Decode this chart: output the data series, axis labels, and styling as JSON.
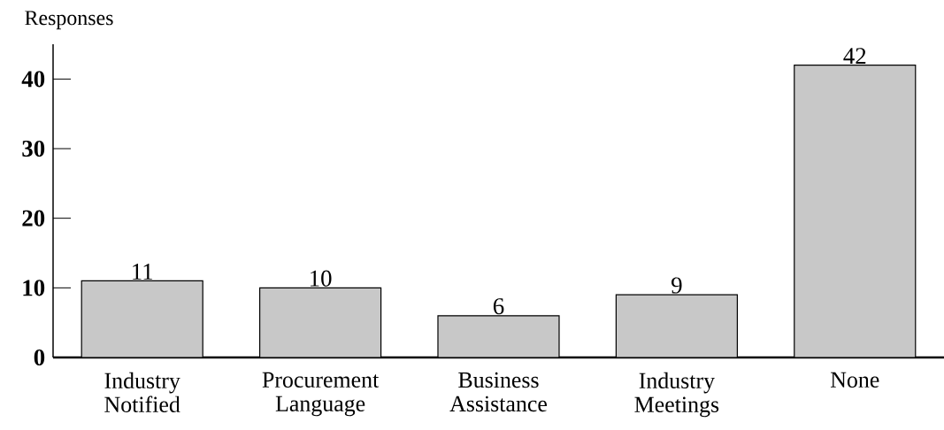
{
  "chart_data": {
    "type": "bar",
    "ylabel": "Responses",
    "categories": [
      "Industry Notified",
      "Procurement Language",
      "Business Assistance",
      "Industry Meetings",
      "None"
    ],
    "values": [
      11,
      10,
      6,
      9,
      42
    ],
    "color": "#c8c8c8",
    "ylim": [
      0,
      45
    ],
    "yticks": [
      0,
      10,
      20,
      30,
      40
    ],
    "data_labels": true
  }
}
